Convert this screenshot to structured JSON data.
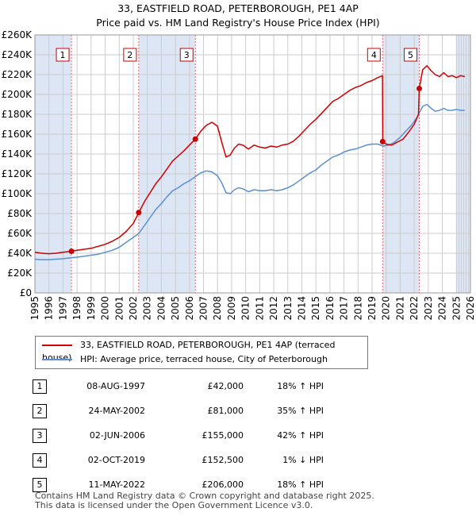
{
  "header": {
    "title": "33, EASTFIELD ROAD, PETERBOROUGH, PE1 4AP",
    "subtitle": "Price paid vs. HM Land Registry's House Price Index (HPI)"
  },
  "colors": {
    "price_line": "#cc0000",
    "hpi_line": "#5b8fd1",
    "band": "#dde6f5",
    "grid": "#cccccc",
    "marker_line": "#e06666"
  },
  "chart_data": {
    "type": "line",
    "title": "33, EASTFIELD ROAD, PETERBOROUGH, PE1 4AP",
    "xlabel": "",
    "ylabel": "",
    "xlim": [
      1995,
      2026
    ],
    "ylim": [
      0,
      260000
    ],
    "x_ticks": [
      1995,
      1996,
      1997,
      1998,
      1999,
      2000,
      2001,
      2002,
      2003,
      2004,
      2005,
      2006,
      2007,
      2008,
      2009,
      2010,
      2011,
      2012,
      2013,
      2014,
      2015,
      2016,
      2017,
      2018,
      2019,
      2020,
      2021,
      2022,
      2023,
      2024,
      2025,
      2026
    ],
    "y_ticks": [
      {
        "value": 0,
        "label": "£0"
      },
      {
        "value": 20000,
        "label": "£20K"
      },
      {
        "value": 40000,
        "label": "£40K"
      },
      {
        "value": 60000,
        "label": "£60K"
      },
      {
        "value": 80000,
        "label": "£80K"
      },
      {
        "value": 100000,
        "label": "£100K"
      },
      {
        "value": 120000,
        "label": "£120K"
      },
      {
        "value": 140000,
        "label": "£140K"
      },
      {
        "value": 160000,
        "label": "£160K"
      },
      {
        "value": 180000,
        "label": "£180K"
      },
      {
        "value": 200000,
        "label": "£200K"
      },
      {
        "value": 220000,
        "label": "£220K"
      },
      {
        "value": 240000,
        "label": "£240K"
      },
      {
        "value": 260000,
        "label": "£260K"
      }
    ],
    "shaded_ranges": [
      [
        1995,
        1997.6
      ],
      [
        2002.4,
        2006.4
      ],
      [
        2019.75,
        2022.36
      ],
      [
        2025.0,
        2026
      ]
    ],
    "series": [
      {
        "name": "33, EASTFIELD ROAD, PETERBOROUGH, PE1 4AP (terraced house)",
        "x": [
          1995.0,
          1995.5,
          1996.0,
          1996.5,
          1997.0,
          1997.6,
          1998.0,
          1998.5,
          1999.0,
          1999.5,
          2000.0,
          2000.5,
          2001.0,
          2001.5,
          2002.0,
          2002.39,
          2002.8,
          2003.2,
          2003.6,
          2004.0,
          2004.4,
          2004.8,
          2005.2,
          2005.6,
          2006.0,
          2006.42,
          2006.8,
          2007.2,
          2007.6,
          2008.0,
          2008.3,
          2008.6,
          2008.9,
          2009.2,
          2009.5,
          2009.8,
          2010.2,
          2010.6,
          2011.0,
          2011.4,
          2011.8,
          2012.2,
          2012.6,
          2013.0,
          2013.4,
          2013.8,
          2014.2,
          2014.6,
          2015.0,
          2015.4,
          2015.8,
          2016.2,
          2016.6,
          2017.0,
          2017.4,
          2017.8,
          2018.2,
          2018.6,
          2019.0,
          2019.4,
          2019.74,
          2019.76,
          2020.0,
          2020.4,
          2020.8,
          2021.2,
          2021.6,
          2022.0,
          2022.3,
          2022.36,
          2022.6,
          2022.9,
          2023.2,
          2023.5,
          2023.8,
          2024.1,
          2024.4,
          2024.7,
          2025.0,
          2025.3,
          2025.6
        ],
        "y": [
          41000,
          40000,
          39500,
          40000,
          41000,
          42000,
          43000,
          44000,
          45000,
          47000,
          49000,
          52000,
          56000,
          62000,
          70000,
          81000,
          92000,
          101000,
          110000,
          117000,
          125000,
          133000,
          138000,
          143000,
          149000,
          155000,
          163000,
          169000,
          172000,
          168000,
          152000,
          137000,
          139000,
          146000,
          150000,
          149000,
          145000,
          149000,
          147000,
          146000,
          148000,
          147000,
          149000,
          150000,
          153000,
          158000,
          164000,
          170000,
          175000,
          181000,
          187000,
          193000,
          196000,
          200000,
          204000,
          207000,
          209000,
          212000,
          214000,
          217000,
          219000,
          152500,
          150000,
          149000,
          152000,
          155000,
          162000,
          170000,
          180000,
          206000,
          225000,
          229000,
          224000,
          220000,
          218000,
          222000,
          218000,
          219000,
          217000,
          219000,
          218000
        ]
      },
      {
        "name": "HPI: Average price, terraced house, City of Peterborough",
        "x": [
          1995.0,
          1995.5,
          1996.0,
          1996.5,
          1997.0,
          1997.6,
          1998.0,
          1998.5,
          1999.0,
          1999.5,
          2000.0,
          2000.5,
          2001.0,
          2001.5,
          2002.0,
          2002.4,
          2002.8,
          2003.2,
          2003.6,
          2004.0,
          2004.4,
          2004.8,
          2005.2,
          2005.6,
          2006.0,
          2006.4,
          2006.8,
          2007.2,
          2007.6,
          2008.0,
          2008.3,
          2008.6,
          2008.9,
          2009.2,
          2009.5,
          2009.8,
          2010.2,
          2010.6,
          2011.0,
          2011.4,
          2011.8,
          2012.2,
          2012.6,
          2013.0,
          2013.4,
          2013.8,
          2014.2,
          2014.6,
          2015.0,
          2015.4,
          2015.8,
          2016.2,
          2016.6,
          2017.0,
          2017.4,
          2017.8,
          2018.2,
          2018.6,
          2019.0,
          2019.4,
          2019.8,
          2020.2,
          2020.6,
          2021.0,
          2021.4,
          2021.8,
          2022.2,
          2022.6,
          2022.9,
          2023.2,
          2023.5,
          2023.8,
          2024.1,
          2024.4,
          2024.7,
          2025.0,
          2025.3,
          2025.6
        ],
        "y": [
          34000,
          33500,
          33500,
          34000,
          34500,
          35500,
          36000,
          37000,
          38000,
          39000,
          41000,
          43000,
          46000,
          51000,
          56000,
          60000,
          68000,
          76000,
          84000,
          90000,
          97000,
          103000,
          106000,
          110000,
          113000,
          117000,
          121000,
          123000,
          122000,
          118000,
          111000,
          101000,
          100000,
          104000,
          106000,
          105000,
          102000,
          104000,
          103000,
          103000,
          104000,
          103000,
          104000,
          106000,
          109000,
          113000,
          117000,
          121000,
          124000,
          129000,
          133000,
          137000,
          139000,
          142000,
          144000,
          145000,
          147000,
          149000,
          150000,
          150000,
          148000,
          149000,
          152000,
          157000,
          163000,
          169000,
          177000,
          188000,
          190000,
          186000,
          183000,
          184000,
          186000,
          184000,
          184000,
          185000,
          184000,
          184000
        ]
      }
    ],
    "sales": [
      {
        "num": "1",
        "x": 1997.6,
        "price": 42000
      },
      {
        "num": "2",
        "x": 2002.39,
        "price": 81000
      },
      {
        "num": "3",
        "x": 2006.42,
        "price": 155000
      },
      {
        "num": "4",
        "x": 2019.75,
        "price": 152500
      },
      {
        "num": "5",
        "x": 2022.36,
        "price": 206000
      }
    ]
  },
  "legend": {
    "price_label": "33, EASTFIELD ROAD, PETERBOROUGH, PE1 4AP (terraced house)",
    "hpi_label": "HPI: Average price, terraced house, City of Peterborough"
  },
  "table": [
    {
      "num": "1",
      "date": "08-AUG-1997",
      "price": "£42,000",
      "delta": "18% ↑ HPI"
    },
    {
      "num": "2",
      "date": "24-MAY-2002",
      "price": "£81,000",
      "delta": "35% ↑ HPI"
    },
    {
      "num": "3",
      "date": "02-JUN-2006",
      "price": "£155,000",
      "delta": "42% ↑ HPI"
    },
    {
      "num": "4",
      "date": "02-OCT-2019",
      "price": "£152,500",
      "delta": "1% ↓ HPI"
    },
    {
      "num": "5",
      "date": "11-MAY-2022",
      "price": "£206,000",
      "delta": "18% ↑ HPI"
    }
  ],
  "footer": {
    "line1": "Contains HM Land Registry data © Crown copyright and database right 2025.",
    "line2": "This data is licensed under the Open Government Licence v3.0."
  }
}
